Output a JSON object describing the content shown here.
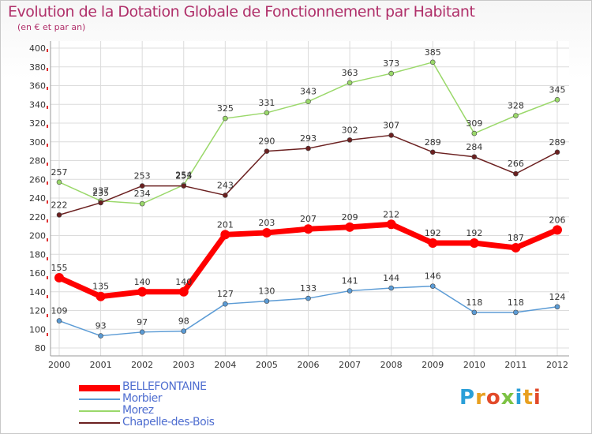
{
  "title": "Evolution de la Dotation Globale de Fonctionnement par Habitant",
  "subtitle": "(en € et par an)",
  "logo": {
    "letters": [
      "P",
      "r",
      "o",
      "x",
      "i",
      "t",
      "i"
    ],
    "colors": [
      "#2a9fd8",
      "#e8a020",
      "#e24a2a",
      "#7cc243",
      "#2a9fd8",
      "#e8a020",
      "#e24a2a"
    ]
  },
  "chart_data": {
    "type": "line",
    "title": "Evolution de la Dotation Globale de Fonctionnement par Habitant",
    "ylabel": "(en € et par an)",
    "xlabel": "",
    "ylim": [
      80,
      400
    ],
    "y_ticks": [
      80,
      100,
      120,
      140,
      160,
      180,
      200,
      220,
      240,
      260,
      280,
      300,
      320,
      340,
      360,
      380,
      400
    ],
    "grid": true,
    "legend_position": "bottom-left",
    "categories": [
      "2000",
      "2001",
      "2002",
      "2003",
      "2004",
      "2005",
      "2006",
      "2007",
      "2008",
      "2009",
      "2010",
      "2011",
      "2012"
    ],
    "series": [
      {
        "name": "Morbier",
        "color": "#5b9bd5",
        "values": [
          109,
          93,
          97,
          98,
          127,
          130,
          133,
          141,
          144,
          146,
          118,
          118,
          124
        ]
      },
      {
        "name": "Morez",
        "color": "#9ad86a",
        "values": [
          257,
          237,
          234,
          254,
          325,
          331,
          343,
          363,
          373,
          385,
          309,
          328,
          345
        ]
      },
      {
        "name": "Chapelle-des-Bois",
        "color": "#6b2020",
        "values": [
          222,
          235,
          253,
          253,
          243,
          290,
          293,
          302,
          307,
          289,
          284,
          266,
          289
        ]
      },
      {
        "name": "BELLEFONTAINE",
        "color": "#ff0000",
        "values": [
          155,
          135,
          140,
          140,
          201,
          203,
          207,
          209,
          212,
          192,
          192,
          187,
          206
        ]
      }
    ],
    "legend": [
      {
        "name": "BELLEFONTAINE",
        "color": "#ff0000",
        "thick": true
      },
      {
        "name": "Morbier",
        "color": "#5b9bd5",
        "thick": false
      },
      {
        "name": "Morez",
        "color": "#9ad86a",
        "thick": false
      },
      {
        "name": "Chapelle-des-Bois",
        "color": "#6b2020",
        "thick": false
      }
    ]
  }
}
